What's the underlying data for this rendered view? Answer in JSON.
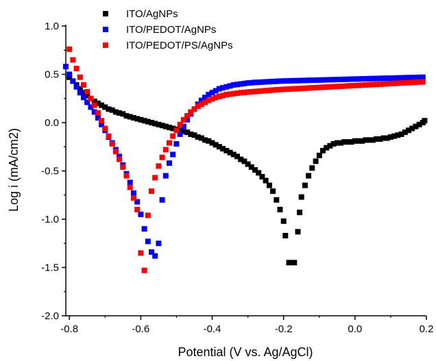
{
  "chart_data": {
    "type": "scatter",
    "title": "",
    "xlabel": "Potential (V vs. Ag/AgCl)",
    "ylabel": "Log i (mA/cm2)",
    "xlim": [
      -0.81,
      0.2
    ],
    "ylim": [
      -2.0,
      1.0
    ],
    "xticks": [
      -0.8,
      -0.6,
      -0.4,
      -0.2,
      0.0,
      0.2
    ],
    "xtick_labels": [
      "-0.8",
      "-0.6",
      "-0.4",
      "-0.2",
      "0.0",
      "0.2"
    ],
    "yticks": [
      -2.0,
      -1.5,
      -1.0,
      -0.5,
      0.0,
      0.5,
      1.0
    ],
    "ytick_labels": [
      "-2.0",
      "-1.5",
      "-1.0",
      "-0.5",
      "0.0",
      "0.5",
      "1.0"
    ],
    "grid": false,
    "legend_position": "top-left",
    "marker": "square",
    "series": [
      {
        "name": "ITO/AgNPs",
        "color": "#000000",
        "points": [
          [
            -0.8,
            0.47
          ],
          [
            -0.79,
            0.43
          ],
          [
            -0.78,
            0.39
          ],
          [
            -0.77,
            0.35
          ],
          [
            -0.76,
            0.31
          ],
          [
            -0.75,
            0.28
          ],
          [
            -0.74,
            0.25
          ],
          [
            -0.73,
            0.22
          ],
          [
            -0.72,
            0.2
          ],
          [
            -0.71,
            0.18
          ],
          [
            -0.7,
            0.16
          ],
          [
            -0.69,
            0.14
          ],
          [
            -0.68,
            0.13
          ],
          [
            -0.67,
            0.11
          ],
          [
            -0.66,
            0.1
          ],
          [
            -0.65,
            0.09
          ],
          [
            -0.64,
            0.07
          ],
          [
            -0.63,
            0.06
          ],
          [
            -0.62,
            0.05
          ],
          [
            -0.61,
            0.04
          ],
          [
            -0.6,
            0.03
          ],
          [
            -0.59,
            0.02
          ],
          [
            -0.58,
            0.01
          ],
          [
            -0.57,
            0.0
          ],
          [
            -0.56,
            -0.01
          ],
          [
            -0.55,
            -0.02
          ],
          [
            -0.54,
            -0.03
          ],
          [
            -0.53,
            -0.04
          ],
          [
            -0.52,
            -0.05
          ],
          [
            -0.51,
            -0.06
          ],
          [
            -0.5,
            -0.07
          ],
          [
            -0.49,
            -0.08
          ],
          [
            -0.48,
            -0.09
          ],
          [
            -0.47,
            -0.1
          ],
          [
            -0.46,
            -0.12
          ],
          [
            -0.45,
            -0.13
          ],
          [
            -0.44,
            -0.15
          ],
          [
            -0.43,
            -0.16
          ],
          [
            -0.42,
            -0.18
          ],
          [
            -0.41,
            -0.19
          ],
          [
            -0.4,
            -0.21
          ],
          [
            -0.39,
            -0.23
          ],
          [
            -0.38,
            -0.25
          ],
          [
            -0.37,
            -0.27
          ],
          [
            -0.36,
            -0.29
          ],
          [
            -0.35,
            -0.31
          ],
          [
            -0.34,
            -0.33
          ],
          [
            -0.33,
            -0.35
          ],
          [
            -0.32,
            -0.38
          ],
          [
            -0.31,
            -0.4
          ],
          [
            -0.3,
            -0.43
          ],
          [
            -0.29,
            -0.46
          ],
          [
            -0.28,
            -0.49
          ],
          [
            -0.27,
            -0.52
          ],
          [
            -0.26,
            -0.56
          ],
          [
            -0.25,
            -0.6
          ],
          [
            -0.24,
            -0.65
          ],
          [
            -0.23,
            -0.71
          ],
          [
            -0.22,
            -0.8
          ],
          [
            -0.21,
            -0.9
          ],
          [
            -0.2,
            -1.02
          ],
          [
            -0.195,
            -1.17
          ],
          [
            -0.185,
            -1.45
          ],
          [
            -0.17,
            -1.45
          ],
          [
            -0.16,
            -1.13
          ],
          [
            -0.155,
            -0.93
          ],
          [
            -0.15,
            -0.77
          ],
          [
            -0.14,
            -0.65
          ],
          [
            -0.13,
            -0.55
          ],
          [
            -0.12,
            -0.47
          ],
          [
            -0.11,
            -0.4
          ],
          [
            -0.1,
            -0.34
          ],
          [
            -0.09,
            -0.29
          ],
          [
            -0.08,
            -0.26
          ],
          [
            -0.07,
            -0.24
          ],
          [
            -0.06,
            -0.22
          ],
          [
            -0.05,
            -0.21
          ],
          [
            -0.04,
            -0.21
          ],
          [
            -0.03,
            -0.2
          ],
          [
            -0.02,
            -0.2
          ],
          [
            -0.01,
            -0.2
          ],
          [
            0.0,
            -0.19
          ],
          [
            0.01,
            -0.19
          ],
          [
            0.02,
            -0.19
          ],
          [
            0.03,
            -0.18
          ],
          [
            0.04,
            -0.18
          ],
          [
            0.05,
            -0.18
          ],
          [
            0.06,
            -0.17
          ],
          [
            0.07,
            -0.17
          ],
          [
            0.08,
            -0.16
          ],
          [
            0.09,
            -0.16
          ],
          [
            0.1,
            -0.15
          ],
          [
            0.11,
            -0.14
          ],
          [
            0.12,
            -0.13
          ],
          [
            0.13,
            -0.12
          ],
          [
            0.14,
            -0.1
          ],
          [
            0.15,
            -0.08
          ],
          [
            0.16,
            -0.06
          ],
          [
            0.17,
            -0.04
          ],
          [
            0.18,
            -0.02
          ],
          [
            0.19,
            0.0
          ],
          [
            0.195,
            0.02
          ]
        ]
      },
      {
        "name": "ITO/PEDOT/AgNPs",
        "color": "#0000ff",
        "points": [
          [
            -0.81,
            0.58
          ],
          [
            -0.8,
            0.5
          ],
          [
            -0.79,
            0.43
          ],
          [
            -0.78,
            0.37
          ],
          [
            -0.77,
            0.31
          ],
          [
            -0.76,
            0.26
          ],
          [
            -0.75,
            0.21
          ],
          [
            -0.74,
            0.16
          ],
          [
            -0.73,
            0.11
          ],
          [
            -0.72,
            0.05
          ],
          [
            -0.71,
            -0.02
          ],
          [
            -0.7,
            -0.08
          ],
          [
            -0.69,
            -0.15
          ],
          [
            -0.68,
            -0.21
          ],
          [
            -0.67,
            -0.28
          ],
          [
            -0.66,
            -0.35
          ],
          [
            -0.65,
            -0.44
          ],
          [
            -0.64,
            -0.53
          ],
          [
            -0.63,
            -0.62
          ],
          [
            -0.62,
            -0.73
          ],
          [
            -0.61,
            -0.82
          ],
          [
            -0.6,
            -0.95
          ],
          [
            -0.59,
            -1.1
          ],
          [
            -0.58,
            -1.23
          ],
          [
            -0.57,
            -1.34
          ],
          [
            -0.56,
            -1.38
          ],
          [
            -0.55,
            -1.25
          ],
          [
            -0.54,
            -0.8
          ],
          [
            -0.53,
            -0.55
          ],
          [
            -0.52,
            -0.42
          ],
          [
            -0.51,
            -0.33
          ],
          [
            -0.5,
            -0.22
          ],
          [
            -0.49,
            -0.12
          ],
          [
            -0.48,
            -0.04
          ],
          [
            -0.47,
            0.03
          ],
          [
            -0.46,
            0.09
          ],
          [
            -0.45,
            0.14
          ],
          [
            -0.44,
            0.19
          ],
          [
            -0.43,
            0.23
          ],
          [
            -0.42,
            0.26
          ],
          [
            -0.41,
            0.29
          ],
          [
            -0.4,
            0.31
          ],
          [
            -0.39,
            0.33
          ],
          [
            -0.38,
            0.35
          ],
          [
            -0.37,
            0.36
          ],
          [
            -0.36,
            0.37
          ],
          [
            -0.35,
            0.38
          ],
          [
            -0.34,
            0.39
          ],
          [
            -0.33,
            0.395
          ],
          [
            -0.32,
            0.4
          ],
          [
            -0.31,
            0.405
          ],
          [
            -0.3,
            0.41
          ],
          [
            -0.29,
            0.413
          ],
          [
            -0.28,
            0.416
          ],
          [
            -0.27,
            0.418
          ],
          [
            -0.26,
            0.42
          ],
          [
            -0.25,
            0.422
          ],
          [
            -0.24,
            0.424
          ],
          [
            -0.23,
            0.426
          ],
          [
            -0.22,
            0.428
          ],
          [
            -0.21,
            0.43
          ],
          [
            -0.2,
            0.431
          ],
          [
            -0.19,
            0.432
          ],
          [
            -0.18,
            0.433
          ],
          [
            -0.17,
            0.434
          ],
          [
            -0.16,
            0.435
          ],
          [
            -0.15,
            0.436
          ],
          [
            -0.14,
            0.437
          ],
          [
            -0.13,
            0.438
          ],
          [
            -0.12,
            0.439
          ],
          [
            -0.11,
            0.44
          ],
          [
            -0.1,
            0.441
          ],
          [
            -0.09,
            0.442
          ],
          [
            -0.08,
            0.443
          ],
          [
            -0.07,
            0.444
          ],
          [
            -0.06,
            0.445
          ],
          [
            -0.05,
            0.446
          ],
          [
            -0.04,
            0.447
          ],
          [
            -0.03,
            0.448
          ],
          [
            -0.02,
            0.449
          ],
          [
            -0.01,
            0.45
          ],
          [
            0.0,
            0.451
          ],
          [
            0.01,
            0.452
          ],
          [
            0.02,
            0.453
          ],
          [
            0.03,
            0.454
          ],
          [
            0.04,
            0.455
          ],
          [
            0.05,
            0.456
          ],
          [
            0.06,
            0.457
          ],
          [
            0.07,
            0.458
          ],
          [
            0.08,
            0.459
          ],
          [
            0.09,
            0.46
          ],
          [
            0.1,
            0.461
          ],
          [
            0.11,
            0.462
          ],
          [
            0.12,
            0.463
          ],
          [
            0.13,
            0.464
          ],
          [
            0.14,
            0.465
          ],
          [
            0.15,
            0.466
          ],
          [
            0.16,
            0.467
          ],
          [
            0.17,
            0.468
          ],
          [
            0.18,
            0.469
          ],
          [
            0.19,
            0.47
          ]
        ]
      },
      {
        "name": "ITO/PEDOT/PS/AgNPs",
        "color": "#ff0000",
        "points": [
          [
            -0.8,
            0.76
          ],
          [
            -0.79,
            0.65
          ],
          [
            -0.78,
            0.56
          ],
          [
            -0.77,
            0.47
          ],
          [
            -0.76,
            0.39
          ],
          [
            -0.75,
            0.32
          ],
          [
            -0.74,
            0.25
          ],
          [
            -0.73,
            0.18
          ],
          [
            -0.72,
            0.1
          ],
          [
            -0.71,
            0.02
          ],
          [
            -0.7,
            -0.06
          ],
          [
            -0.69,
            -0.14
          ],
          [
            -0.68,
            -0.22
          ],
          [
            -0.67,
            -0.3
          ],
          [
            -0.66,
            -0.38
          ],
          [
            -0.65,
            -0.46
          ],
          [
            -0.64,
            -0.55
          ],
          [
            -0.63,
            -0.67
          ],
          [
            -0.62,
            -0.78
          ],
          [
            -0.61,
            -0.9
          ],
          [
            -0.6,
            -1.35
          ],
          [
            -0.59,
            -1.53
          ],
          [
            -0.58,
            -0.96
          ],
          [
            -0.57,
            -0.71
          ],
          [
            -0.56,
            -0.57
          ],
          [
            -0.55,
            -0.45
          ],
          [
            -0.54,
            -0.36
          ],
          [
            -0.53,
            -0.28
          ],
          [
            -0.52,
            -0.21
          ],
          [
            -0.51,
            -0.14
          ],
          [
            -0.5,
            -0.08
          ],
          [
            -0.49,
            -0.02
          ],
          [
            -0.48,
            0.03
          ],
          [
            -0.47,
            0.07
          ],
          [
            -0.46,
            0.11
          ],
          [
            -0.45,
            0.14
          ],
          [
            -0.44,
            0.17
          ],
          [
            -0.43,
            0.19
          ],
          [
            -0.42,
            0.21
          ],
          [
            -0.41,
            0.23
          ],
          [
            -0.4,
            0.245
          ],
          [
            -0.39,
            0.26
          ],
          [
            -0.38,
            0.27
          ],
          [
            -0.37,
            0.28
          ],
          [
            -0.36,
            0.29
          ],
          [
            -0.35,
            0.295
          ],
          [
            -0.34,
            0.3
          ],
          [
            -0.33,
            0.305
          ],
          [
            -0.32,
            0.31
          ],
          [
            -0.31,
            0.313
          ],
          [
            -0.3,
            0.316
          ],
          [
            -0.29,
            0.319
          ],
          [
            -0.28,
            0.322
          ],
          [
            -0.27,
            0.325
          ],
          [
            -0.26,
            0.328
          ],
          [
            -0.25,
            0.331
          ],
          [
            -0.24,
            0.334
          ],
          [
            -0.23,
            0.337
          ],
          [
            -0.22,
            0.34
          ],
          [
            -0.21,
            0.342
          ],
          [
            -0.2,
            0.344
          ],
          [
            -0.19,
            0.346
          ],
          [
            -0.18,
            0.348
          ],
          [
            -0.17,
            0.35
          ],
          [
            -0.16,
            0.352
          ],
          [
            -0.15,
            0.354
          ],
          [
            -0.14,
            0.356
          ],
          [
            -0.13,
            0.358
          ],
          [
            -0.12,
            0.36
          ],
          [
            -0.11,
            0.362
          ],
          [
            -0.1,
            0.364
          ],
          [
            -0.09,
            0.366
          ],
          [
            -0.08,
            0.368
          ],
          [
            -0.07,
            0.37
          ],
          [
            -0.06,
            0.372
          ],
          [
            -0.05,
            0.374
          ],
          [
            -0.04,
            0.376
          ],
          [
            -0.03,
            0.378
          ],
          [
            -0.02,
            0.38
          ],
          [
            -0.01,
            0.382
          ],
          [
            0.0,
            0.384
          ],
          [
            0.01,
            0.386
          ],
          [
            0.02,
            0.388
          ],
          [
            0.03,
            0.39
          ],
          [
            0.04,
            0.392
          ],
          [
            0.05,
            0.394
          ],
          [
            0.06,
            0.396
          ],
          [
            0.07,
            0.398
          ],
          [
            0.08,
            0.4
          ],
          [
            0.09,
            0.402
          ],
          [
            0.1,
            0.404
          ],
          [
            0.11,
            0.406
          ],
          [
            0.12,
            0.408
          ],
          [
            0.13,
            0.41
          ],
          [
            0.14,
            0.412
          ],
          [
            0.15,
            0.414
          ],
          [
            0.16,
            0.416
          ],
          [
            0.17,
            0.418
          ],
          [
            0.18,
            0.42
          ],
          [
            0.19,
            0.422
          ]
        ]
      }
    ]
  }
}
